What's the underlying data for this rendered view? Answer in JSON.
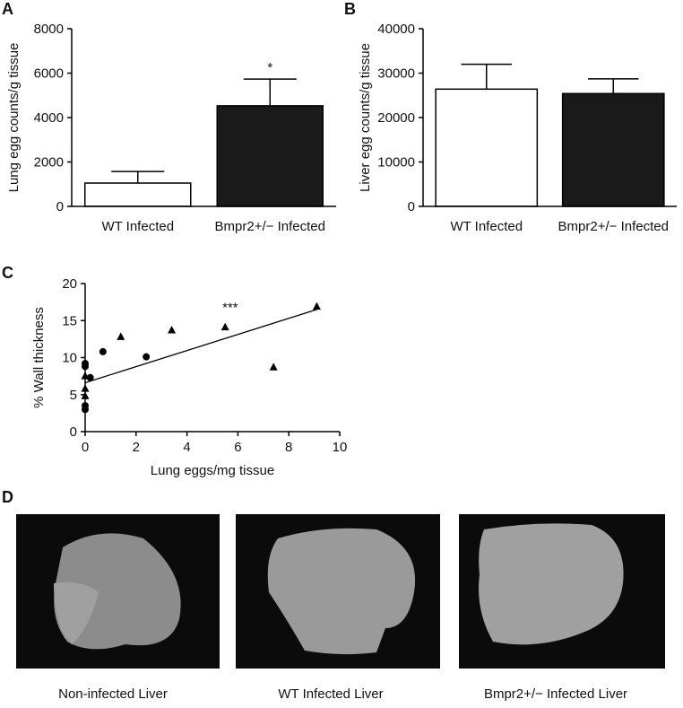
{
  "panel_labels": [
    "A",
    "B",
    "C",
    "D"
  ],
  "chart_data": [
    {
      "type": "bar",
      "ylabel": "Lung egg counts/g tissue",
      "categories": [
        "WT Infected",
        "Bmpr2+/− Infected"
      ],
      "values": [
        1050,
        4530
      ],
      "errors": [
        520,
        1200
      ],
      "colors": [
        "#ffffff",
        "#1a1a1a"
      ],
      "annotations": [
        {
          "text": "*",
          "category": 1
        }
      ],
      "ylim": [
        0,
        8000
      ],
      "yticks": [
        0,
        2000,
        4000,
        6000,
        8000
      ]
    },
    {
      "type": "bar",
      "ylabel": "Liver egg counts/g tissue",
      "categories": [
        "WT Infected",
        "Bmpr2+/− Infected"
      ],
      "values": [
        26400,
        25400
      ],
      "errors": [
        5600,
        3300
      ],
      "colors": [
        "#ffffff",
        "#1a1a1a"
      ],
      "ylim": [
        0,
        40000
      ],
      "yticks": [
        0,
        10000,
        20000,
        30000,
        40000
      ]
    },
    {
      "type": "scatter",
      "xlabel": "Lung eggs/mg tissue",
      "ylabel": "% Wall thickness",
      "series": [
        {
          "marker": "circle",
          "color": "#000000",
          "x": [
            0,
            0,
            0,
            0,
            0.2,
            0.7,
            2.4
          ],
          "y": [
            9.2,
            8.8,
            3.5,
            3.0,
            7.3,
            10.8,
            10.1
          ]
        },
        {
          "marker": "triangle",
          "color": "#000000",
          "x": [
            0,
            0,
            0,
            1.4,
            3.4,
            5.5,
            7.4,
            9.1
          ],
          "y": [
            7.5,
            5.8,
            4.8,
            12.8,
            13.7,
            14.1,
            8.7,
            16.9
          ]
        }
      ],
      "fit": {
        "x": [
          0,
          9.1
        ],
        "y": [
          6.6,
          16.5
        ]
      },
      "annotations": [
        {
          "text": "***",
          "x": 5.7,
          "y": 16.2
        }
      ],
      "xlim": [
        0,
        10
      ],
      "xticks": [
        0,
        2,
        4,
        6,
        8,
        10
      ],
      "ylim": [
        0,
        20
      ],
      "yticks": [
        0,
        5,
        10,
        15,
        20
      ]
    }
  ],
  "image_captions": [
    "Non-infected Liver",
    "WT Infected Liver",
    "Bmpr2+/− Infected Liver"
  ]
}
